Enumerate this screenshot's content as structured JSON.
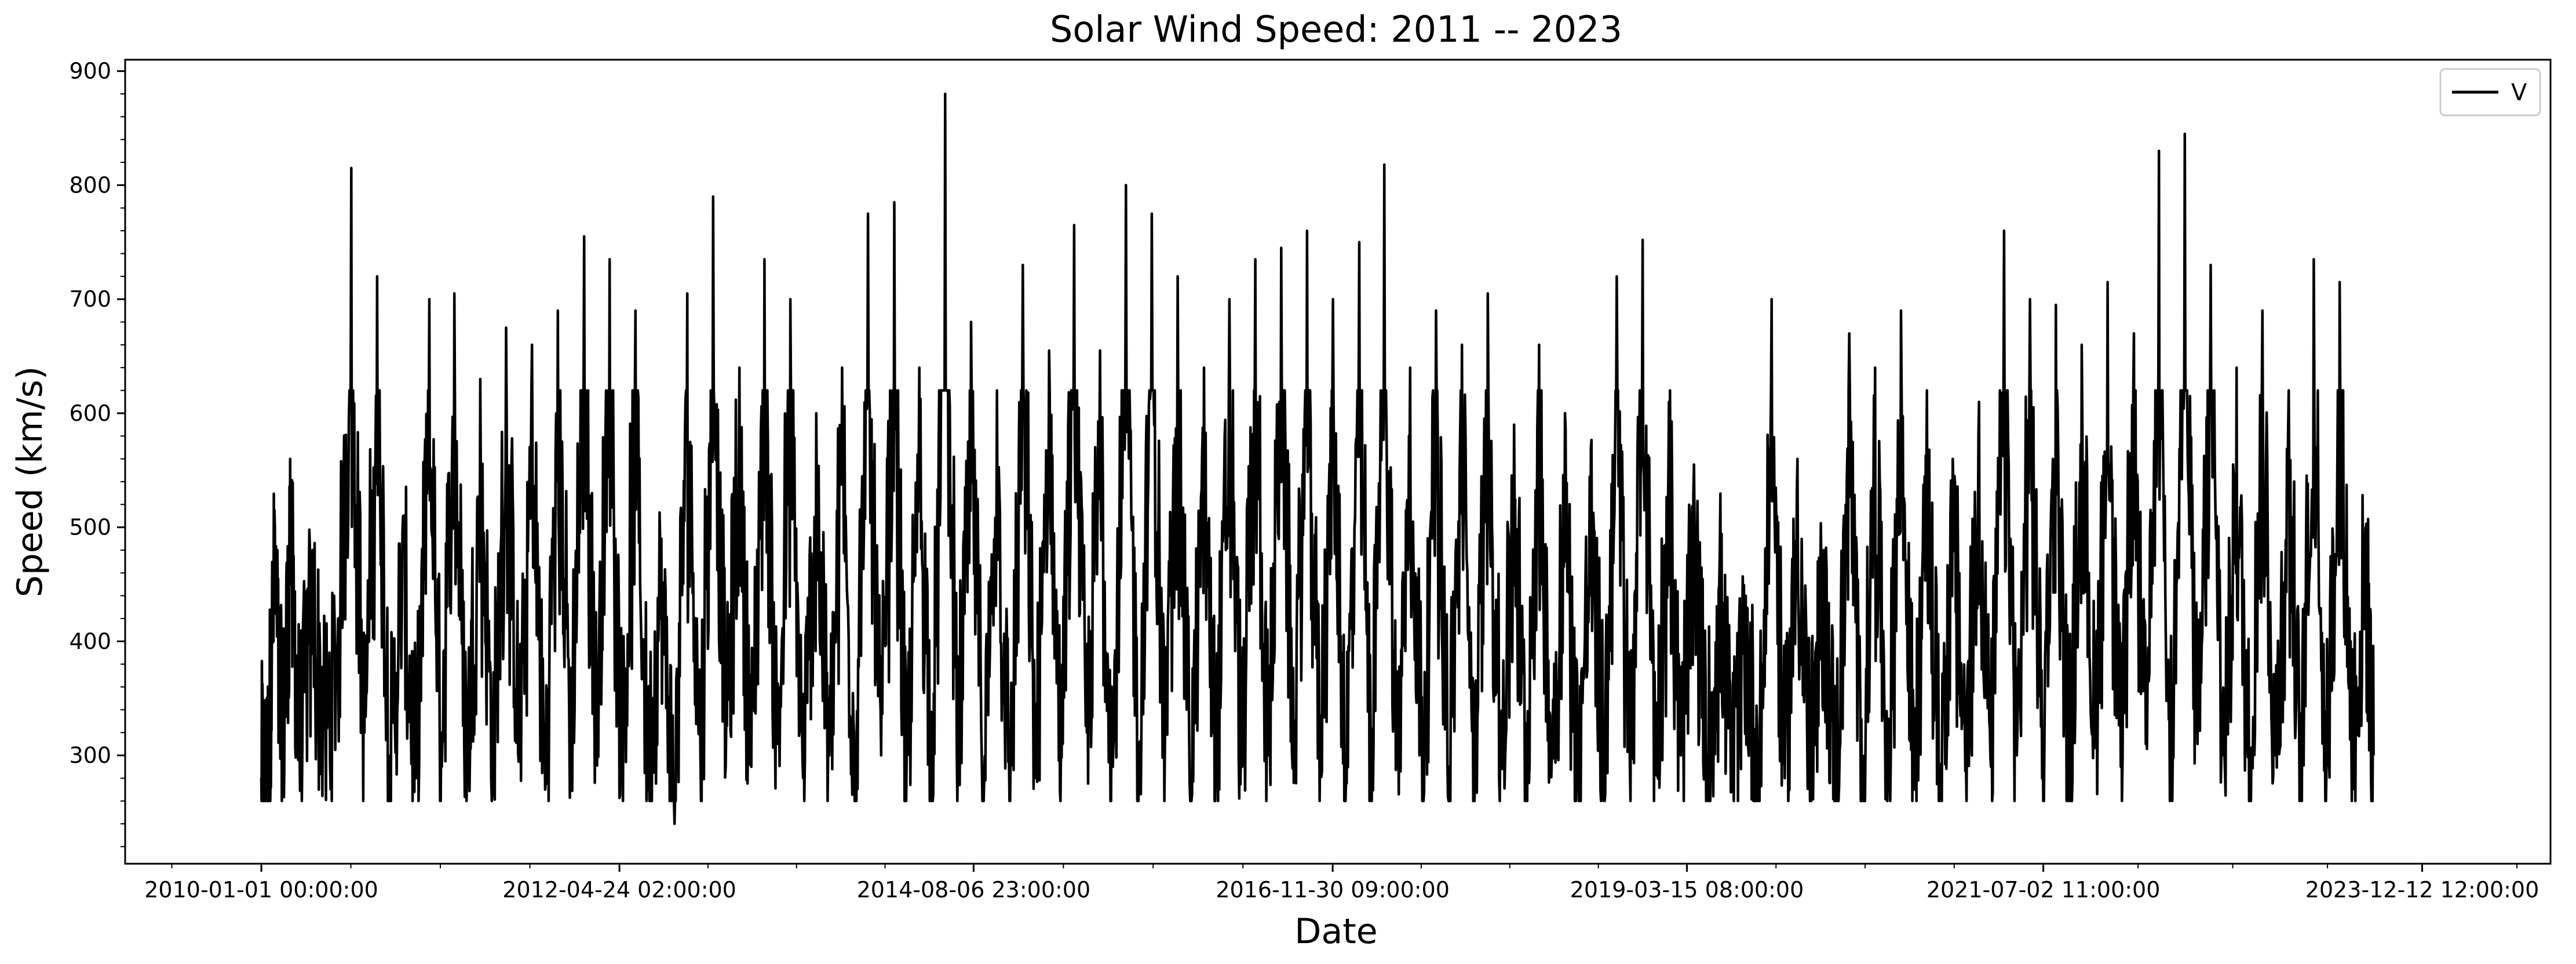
{
  "chart_data": {
    "type": "line",
    "title": "Solar Wind Speed: 2011 -- 2023",
    "xlabel": "Date",
    "ylabel": "Speed (km/s)",
    "xlim": [
      "2009-02-14",
      "2024-10-10"
    ],
    "ylim": [
      205,
      910
    ],
    "x_ticks": [
      "2010-01-01 00:00:00",
      "2012-04-24 02:00:00",
      "2014-08-06 23:00:00",
      "2016-11-30 09:00:00",
      "2019-03-15 08:00:00",
      "2021-07-02 11:00:00",
      "2023-12-12 12:00:00"
    ],
    "y_ticks": [
      "300",
      "400",
      "500",
      "600",
      "700",
      "800",
      "900"
    ],
    "grid": false,
    "legend": {
      "position": "top-right",
      "entries": [
        "V"
      ]
    },
    "series": [
      {
        "name": "V",
        "color": "#000000",
        "points": [
          [
            "2010-01-01",
            280
          ],
          [
            "2010-01-15",
            265
          ],
          [
            "2010-02-01",
            515
          ],
          [
            "2010-02-20",
            300
          ],
          [
            "2010-03-10",
            560
          ],
          [
            "2010-04-01",
            310
          ],
          [
            "2010-05-01",
            470
          ],
          [
            "2010-06-01",
            330
          ],
          [
            "2010-07-01",
            420
          ],
          [
            "2010-08-01",
            815
          ],
          [
            "2010-09-01",
            320
          ],
          [
            "2010-10-01",
            720
          ],
          [
            "2010-11-01",
            300
          ],
          [
            "2010-12-01",
            510
          ],
          [
            "2011-01-01",
            280
          ],
          [
            "2011-02-01",
            700
          ],
          [
            "2011-03-01",
            320
          ],
          [
            "2011-04-01",
            705
          ],
          [
            "2011-05-01",
            290
          ],
          [
            "2011-06-01",
            630
          ],
          [
            "2011-07-01",
            300
          ],
          [
            "2011-08-01",
            675
          ],
          [
            "2011-09-01",
            310
          ],
          [
            "2011-10-01",
            660
          ],
          [
            "2011-11-01",
            270
          ],
          [
            "2011-12-01",
            690
          ],
          [
            "2012-01-01",
            330
          ],
          [
            "2012-02-01",
            755
          ],
          [
            "2012-03-01",
            345
          ],
          [
            "2012-04-01",
            735
          ],
          [
            "2012-05-01",
            300
          ],
          [
            "2012-06-01",
            690
          ],
          [
            "2012-07-01",
            280
          ],
          [
            "2012-08-01",
            490
          ],
          [
            "2012-09-01",
            240
          ],
          [
            "2012-10-01",
            705
          ],
          [
            "2012-11-01",
            300
          ],
          [
            "2012-12-01",
            790
          ],
          [
            "2013-01-01",
            330
          ],
          [
            "2013-02-01",
            640
          ],
          [
            "2013-03-01",
            290
          ],
          [
            "2013-04-01",
            735
          ],
          [
            "2013-05-01",
            310
          ],
          [
            "2013-06-01",
            700
          ],
          [
            "2013-07-01",
            280
          ],
          [
            "2013-08-01",
            600
          ],
          [
            "2013-09-01",
            300
          ],
          [
            "2013-10-01",
            640
          ],
          [
            "2013-11-01",
            290
          ],
          [
            "2013-12-01",
            775
          ],
          [
            "2014-01-01",
            300
          ],
          [
            "2014-02-01",
            785
          ],
          [
            "2014-03-01",
            260
          ],
          [
            "2014-04-01",
            640
          ],
          [
            "2014-05-01",
            290
          ],
          [
            "2014-06-01",
            880
          ],
          [
            "2014-07-01",
            300
          ],
          [
            "2014-08-01",
            680
          ],
          [
            "2014-09-01",
            280
          ],
          [
            "2014-10-01",
            620
          ],
          [
            "2014-11-01",
            260
          ],
          [
            "2014-12-01",
            730
          ],
          [
            "2015-01-01",
            300
          ],
          [
            "2015-02-01",
            655
          ],
          [
            "2015-03-01",
            310
          ],
          [
            "2015-04-01",
            765
          ],
          [
            "2015-05-01",
            320
          ],
          [
            "2015-06-01",
            655
          ],
          [
            "2015-07-01",
            290
          ],
          [
            "2015-08-01",
            800
          ],
          [
            "2015-09-01",
            300
          ],
          [
            "2015-10-01",
            775
          ],
          [
            "2015-11-01",
            310
          ],
          [
            "2015-12-01",
            720
          ],
          [
            "2016-01-01",
            270
          ],
          [
            "2016-02-01",
            640
          ],
          [
            "2016-03-01",
            300
          ],
          [
            "2016-04-01",
            700
          ],
          [
            "2016-05-01",
            290
          ],
          [
            "2016-06-01",
            735
          ],
          [
            "2016-07-01",
            300
          ],
          [
            "2016-08-01",
            745
          ],
          [
            "2016-09-01",
            310
          ],
          [
            "2016-10-01",
            760
          ],
          [
            "2016-11-01",
            320
          ],
          [
            "2016-12-01",
            700
          ],
          [
            "2017-01-01",
            280
          ],
          [
            "2017-02-01",
            750
          ],
          [
            "2017-03-01",
            300
          ],
          [
            "2017-04-01",
            818
          ],
          [
            "2017-05-01",
            290
          ],
          [
            "2017-06-01",
            640
          ],
          [
            "2017-07-01",
            300
          ],
          [
            "2017-08-01",
            690
          ],
          [
            "2017-09-01",
            290
          ],
          [
            "2017-10-01",
            660
          ],
          [
            "2017-11-01",
            280
          ],
          [
            "2017-12-01",
            705
          ],
          [
            "2018-01-01",
            300
          ],
          [
            "2018-02-01",
            590
          ],
          [
            "2018-03-01",
            290
          ],
          [
            "2018-04-01",
            660
          ],
          [
            "2018-05-01",
            300
          ],
          [
            "2018-06-01",
            600
          ],
          [
            "2018-07-01",
            280
          ],
          [
            "2018-08-01",
            570
          ],
          [
            "2018-09-01",
            300
          ],
          [
            "2018-10-01",
            720
          ],
          [
            "2018-11-01",
            290
          ],
          [
            "2018-12-01",
            752
          ],
          [
            "2019-01-01",
            300
          ],
          [
            "2019-02-01",
            610
          ],
          [
            "2019-03-01",
            300
          ],
          [
            "2019-04-01",
            555
          ],
          [
            "2019-05-01",
            290
          ],
          [
            "2019-06-01",
            480
          ],
          [
            "2019-07-01",
            280
          ],
          [
            "2019-08-01",
            440
          ],
          [
            "2019-09-01",
            270
          ],
          [
            "2019-10-01",
            700
          ],
          [
            "2019-11-01",
            280
          ],
          [
            "2019-12-01",
            560
          ],
          [
            "2020-01-01",
            290
          ],
          [
            "2020-02-01",
            480
          ],
          [
            "2020-03-01",
            270
          ],
          [
            "2020-04-01",
            670
          ],
          [
            "2020-05-01",
            260
          ],
          [
            "2020-06-01",
            640
          ],
          [
            "2020-07-01",
            280
          ],
          [
            "2020-08-01",
            690
          ],
          [
            "2020-09-01",
            270
          ],
          [
            "2020-10-01",
            620
          ],
          [
            "2020-11-01",
            280
          ],
          [
            "2020-12-01",
            560
          ],
          [
            "2021-01-01",
            300
          ],
          [
            "2021-02-01",
            610
          ],
          [
            "2021-03-01",
            290
          ],
          [
            "2021-04-01",
            760
          ],
          [
            "2021-05-01",
            300
          ],
          [
            "2021-06-01",
            700
          ],
          [
            "2021-07-01",
            310
          ],
          [
            "2021-08-01",
            695
          ],
          [
            "2021-09-01",
            280
          ],
          [
            "2021-10-01",
            660
          ],
          [
            "2021-11-01",
            320
          ],
          [
            "2021-12-01",
            715
          ],
          [
            "2022-01-01",
            290
          ],
          [
            "2022-02-01",
            670
          ],
          [
            "2022-03-01",
            310
          ],
          [
            "2022-04-01",
            830
          ],
          [
            "2022-05-01",
            300
          ],
          [
            "2022-06-01",
            845
          ],
          [
            "2022-07-01",
            310
          ],
          [
            "2022-08-01",
            730
          ],
          [
            "2022-09-01",
            300
          ],
          [
            "2022-10-01",
            640
          ],
          [
            "2022-11-01",
            290
          ],
          [
            "2022-12-01",
            690
          ],
          [
            "2023-01-01",
            300
          ],
          [
            "2023-02-01",
            620
          ],
          [
            "2023-03-01",
            280
          ],
          [
            "2023-04-01",
            735
          ],
          [
            "2023-05-01",
            290
          ],
          [
            "2023-06-01",
            715
          ],
          [
            "2023-07-01",
            330
          ],
          [
            "2023-08-01",
            500
          ],
          [
            "2023-08-20",
            300
          ]
        ]
      }
    ]
  }
}
